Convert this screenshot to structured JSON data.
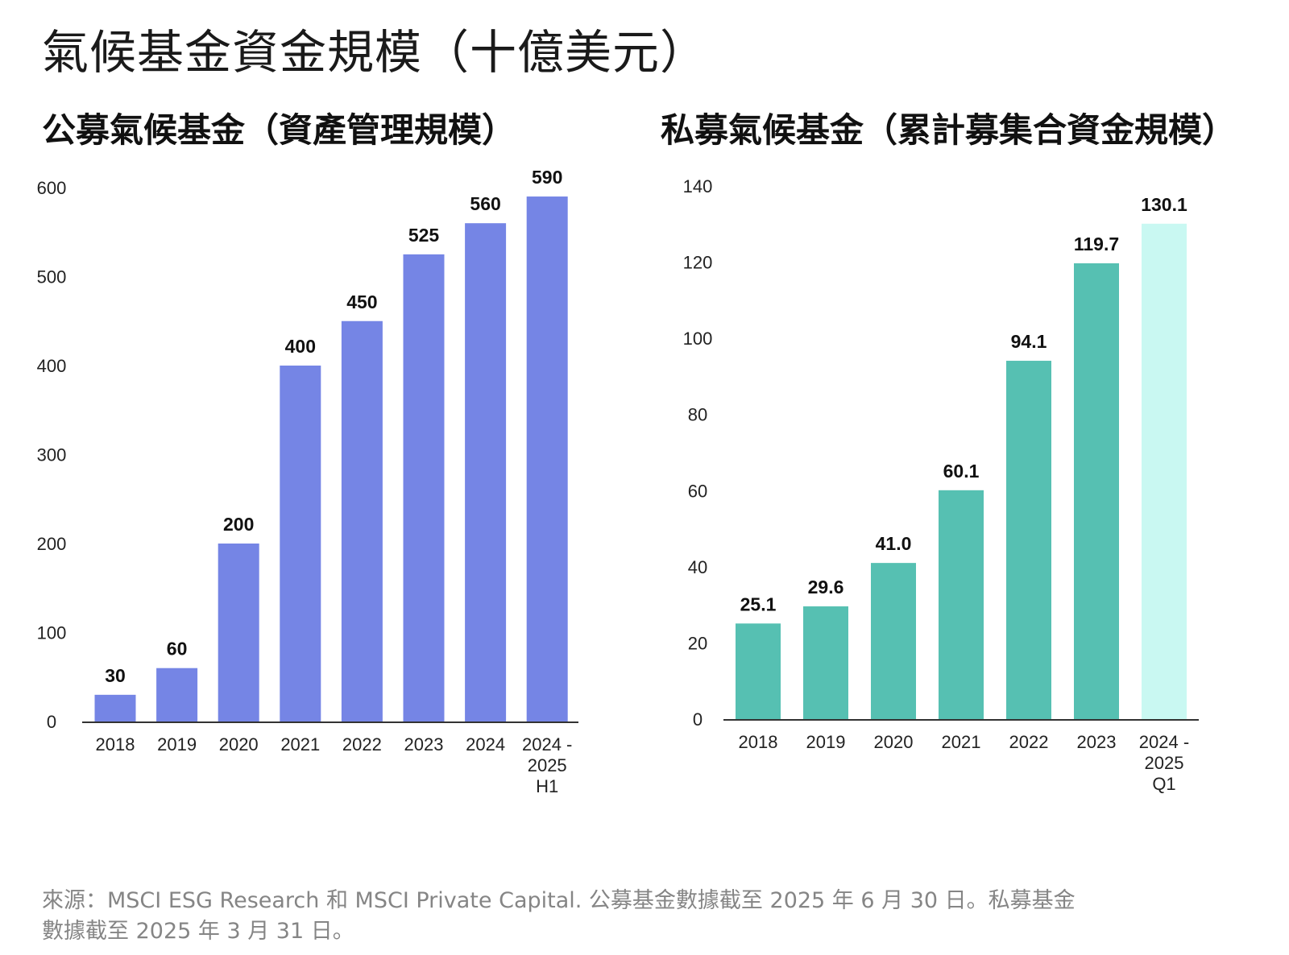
{
  "title": "氣候基金資金規模（十億美元）",
  "footer": {
    "line1": "來源：MSCI ESG Research 和 MSCI Private Capital. 公募基金數據截至 2025 年 6 月 30 日。私募基金",
    "line2": "數據截至 2025 年 3 月 31 日。"
  },
  "chart_data": [
    {
      "type": "bar",
      "title": "公募氣候基金（資產管理規模）",
      "categories": [
        [
          "2018"
        ],
        [
          "2019"
        ],
        [
          "2020"
        ],
        [
          "2021"
        ],
        [
          "2022"
        ],
        [
          "2023"
        ],
        [
          "2024"
        ],
        [
          "2024 -",
          "2025",
          "H1"
        ]
      ],
      "values": [
        30,
        60,
        200,
        400,
        450,
        525,
        560,
        590
      ],
      "value_labels": [
        "30",
        "60",
        "200",
        "400",
        "450",
        "525",
        "560",
        "590"
      ],
      "ylim": [
        0,
        600
      ],
      "yticks": [
        "0",
        "100",
        "200",
        "300",
        "400",
        "500",
        "600"
      ],
      "ytick_values": [
        0,
        100,
        200,
        300,
        400,
        500,
        600
      ],
      "colors": [
        "#7585e5",
        "#7585e5",
        "#7585e5",
        "#7585e5",
        "#7585e5",
        "#7585e5",
        "#7585e5",
        "#7585e5"
      ],
      "xlabel": "",
      "ylabel": "",
      "grid": false
    },
    {
      "type": "bar",
      "title": "私募氣候基金（累計募集合資金規模）",
      "categories": [
        [
          "2018"
        ],
        [
          "2019"
        ],
        [
          "2020"
        ],
        [
          "2021"
        ],
        [
          "2022"
        ],
        [
          "2023"
        ],
        [
          "2024 -",
          "2025",
          "Q1"
        ]
      ],
      "values": [
        25.1,
        29.6,
        41.0,
        60.1,
        94.1,
        119.7,
        130.1
      ],
      "value_labels": [
        "25.1",
        "29.6",
        "41.0",
        "60.1",
        "94.1",
        "119.7",
        "130.1"
      ],
      "ylim": [
        0,
        140
      ],
      "yticks": [
        "0",
        "20",
        "40",
        "60",
        "80",
        "100",
        "120",
        "140"
      ],
      "ytick_values": [
        0,
        20,
        40,
        60,
        80,
        100,
        120,
        140
      ],
      "colors": [
        "#56c0b2",
        "#56c0b2",
        "#56c0b2",
        "#56c0b2",
        "#56c0b2",
        "#56c0b2",
        "#c9f8f2"
      ],
      "xlabel": "",
      "ylabel": "",
      "grid": false
    }
  ]
}
